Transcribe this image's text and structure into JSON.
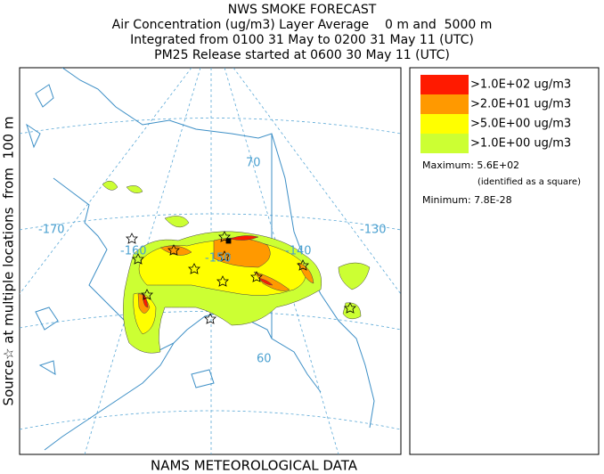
{
  "header": {
    "title": "NWS SMOKE FORECAST",
    "lines": [
      "Air Concentration (ug/m3) Layer Average    0 m and  5000 m",
      "Integrated from 0100 31 May to 0200 31 May 11 (UTC)",
      "PM25 Release started at 0600 30 May 11 (UTC)"
    ]
  },
  "side_label": "Source☆ at multiple locations  from  100 m",
  "footer": "NAMS METEOROLOGICAL DATA",
  "legend": [
    {
      "label": ">1.0E+02 ug/m3",
      "color": "#ff1a00"
    },
    {
      "label": ">2.0E+01 ug/m3",
      "color": "#ff9900"
    },
    {
      "label": ">5.0E+00 ug/m3",
      "color": "#ffff00"
    },
    {
      "label": ">1.0E+00 ug/m3",
      "color": "#ccff33"
    }
  ],
  "maximum": "Maximum: 5.6E+02",
  "maximum_note": "(identified as a square)",
  "minimum": "Minimum: 7.8E-28",
  "map_labels": {
    "lat70": "70",
    "lat60": "60",
    "lon170": "-170",
    "lon160": "-160",
    "lon150": "-150",
    "lon140": "-140",
    "lon130": "-130"
  }
}
